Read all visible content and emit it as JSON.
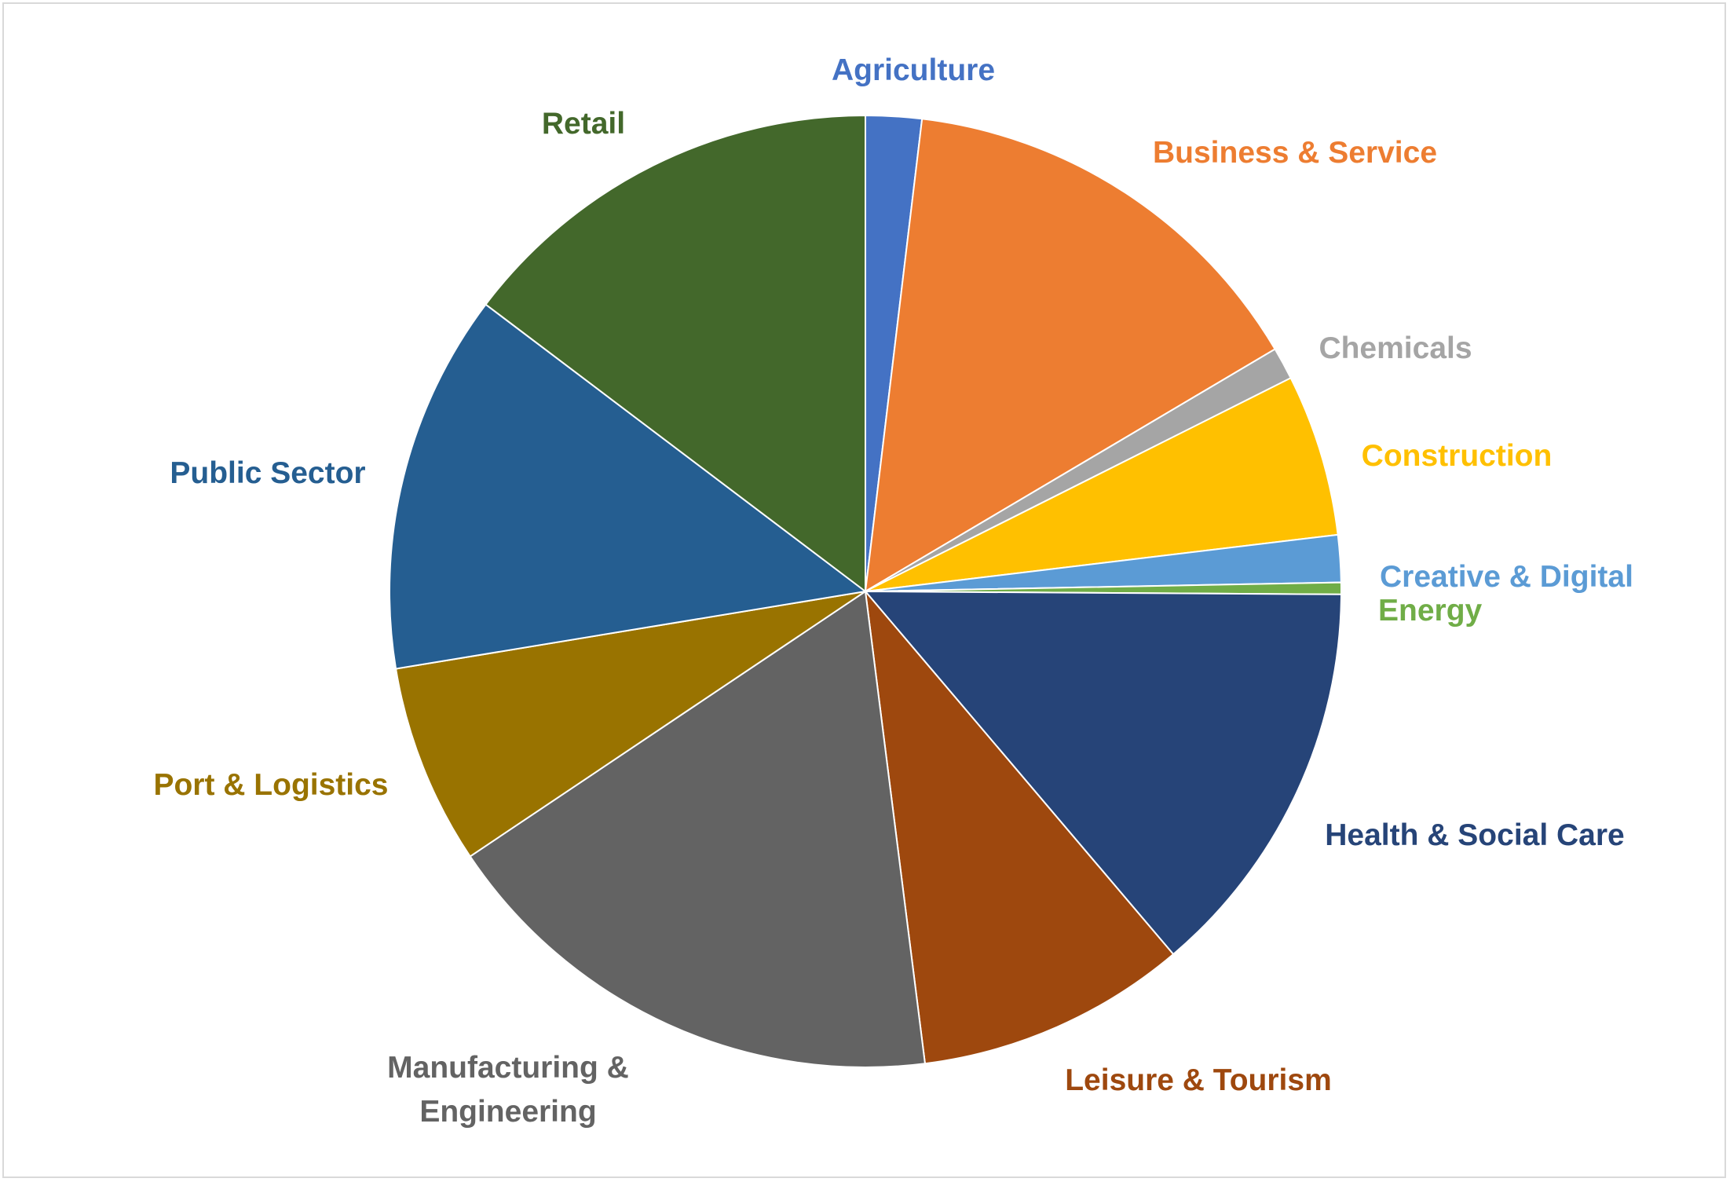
{
  "chart_data": {
    "type": "pie",
    "title": "",
    "legend": "none",
    "slices": [
      {
        "label": "Agriculture",
        "value": 1.9,
        "color": "#4472C4"
      },
      {
        "label": "Business & Service",
        "value": 14.6,
        "color": "#ED7D31"
      },
      {
        "label": "Chemicals",
        "value": 1.1,
        "color": "#A5A5A5"
      },
      {
        "label": "Construction",
        "value": 5.5,
        "color": "#FFC000"
      },
      {
        "label": "Creative & Digital",
        "value": 1.6,
        "color": "#5B9BD5"
      },
      {
        "label": "Energy",
        "value": 0.4,
        "color": "#70AD47"
      },
      {
        "label": "Health & Social Care",
        "value": 13.7,
        "color": "#264478"
      },
      {
        "label": "Leisure & Tourism",
        "value": 9.2,
        "color": "#9E480E"
      },
      {
        "label": "Manufacturing & Engineering",
        "value": 17.6,
        "color": "#636363"
      },
      {
        "label": "Port & Logistics",
        "value": 6.8,
        "color": "#997300"
      },
      {
        "label": "Public Sector",
        "value": 12.9,
        "color": "#255E91"
      },
      {
        "label": "Retail",
        "value": 14.7,
        "color": "#43682B"
      }
    ]
  }
}
